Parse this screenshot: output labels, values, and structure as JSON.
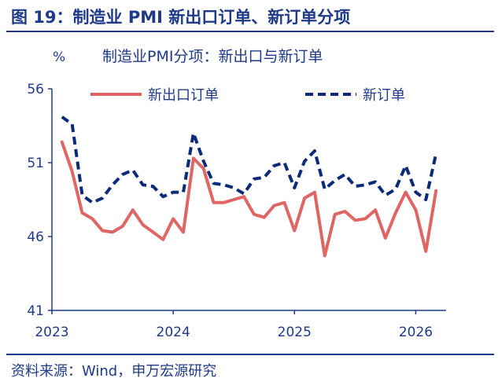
{
  "figure": {
    "title": "图 19：制造业 PMI 新出口订单、新订单分项",
    "source": "资料来源：Wind，申万宏源研究"
  },
  "colors": {
    "accent": "#1f3a8a",
    "series_export": "#e06666",
    "series_new": "#0b2a7a"
  },
  "chart_data": {
    "type": "line",
    "title": "制造业PMI分项：新出口与新订单",
    "ylabel": "%",
    "ylim": [
      41,
      56
    ],
    "yticks": [
      41,
      46,
      51,
      56
    ],
    "xlim": [
      2023,
      2026.25
    ],
    "xticks": [
      {
        "value": 2023,
        "label": "2023"
      },
      {
        "value": 2024,
        "label": "2024"
      },
      {
        "value": 2025,
        "label": "2025"
      },
      {
        "value": 2026,
        "label": "2026"
      }
    ],
    "legend_position": "top",
    "series": [
      {
        "name": "新出口订单",
        "style": "solid",
        "color": "#e06666",
        "x": [
          2023.0833,
          2023.1667,
          2023.25,
          2023.3333,
          2023.4167,
          2023.5,
          2023.5833,
          2023.6667,
          2023.75,
          2023.8333,
          2023.9167,
          2024.0,
          2024.0833,
          2024.1667,
          2024.25,
          2024.3333,
          2024.4167,
          2024.5,
          2024.5833,
          2024.6667,
          2024.75,
          2024.8333,
          2024.9167,
          2025.0,
          2025.0833,
          2025.1667,
          2025.25,
          2025.3333,
          2025.4167,
          2025.5,
          2025.5833,
          2025.6667,
          2025.75,
          2025.8333,
          2025.9167,
          2026.0,
          2026.0833,
          2026.1667
        ],
        "values": [
          52.4,
          50.4,
          47.6,
          47.2,
          46.4,
          46.3,
          46.7,
          47.8,
          46.8,
          46.3,
          45.8,
          47.2,
          46.3,
          51.3,
          50.6,
          48.3,
          48.3,
          48.5,
          48.7,
          47.5,
          47.3,
          48.1,
          48.3,
          46.4,
          48.6,
          49.0,
          44.7,
          47.5,
          47.7,
          47.1,
          47.2,
          47.8,
          45.9,
          47.6,
          49.0,
          47.8,
          45.0,
          49.1
        ]
      },
      {
        "name": "新订单",
        "style": "dashed",
        "color": "#0b2a7a",
        "x": [
          2023.0833,
          2023.1667,
          2023.25,
          2023.3333,
          2023.4167,
          2023.5,
          2023.5833,
          2023.6667,
          2023.75,
          2023.8333,
          2023.9167,
          2024.0,
          2024.0833,
          2024.1667,
          2024.25,
          2024.3333,
          2024.4167,
          2024.5,
          2024.5833,
          2024.6667,
          2024.75,
          2024.8333,
          2024.9167,
          2025.0,
          2025.0833,
          2025.1667,
          2025.25,
          2025.3333,
          2025.4167,
          2025.5,
          2025.5833,
          2025.6667,
          2025.75,
          2025.8333,
          2025.9167,
          2026.0,
          2026.0833,
          2026.1667
        ],
        "values": [
          54.1,
          53.6,
          48.8,
          48.3,
          48.6,
          49.5,
          50.2,
          50.5,
          49.5,
          49.4,
          48.7,
          49.0,
          49.0,
          53.0,
          51.1,
          49.6,
          49.5,
          49.3,
          48.9,
          49.9,
          50.0,
          50.8,
          51.0,
          49.3,
          51.1,
          51.8,
          49.2,
          49.8,
          50.2,
          49.4,
          49.5,
          49.7,
          48.8,
          49.2,
          50.8,
          49.0,
          48.5,
          51.6
        ]
      }
    ]
  }
}
